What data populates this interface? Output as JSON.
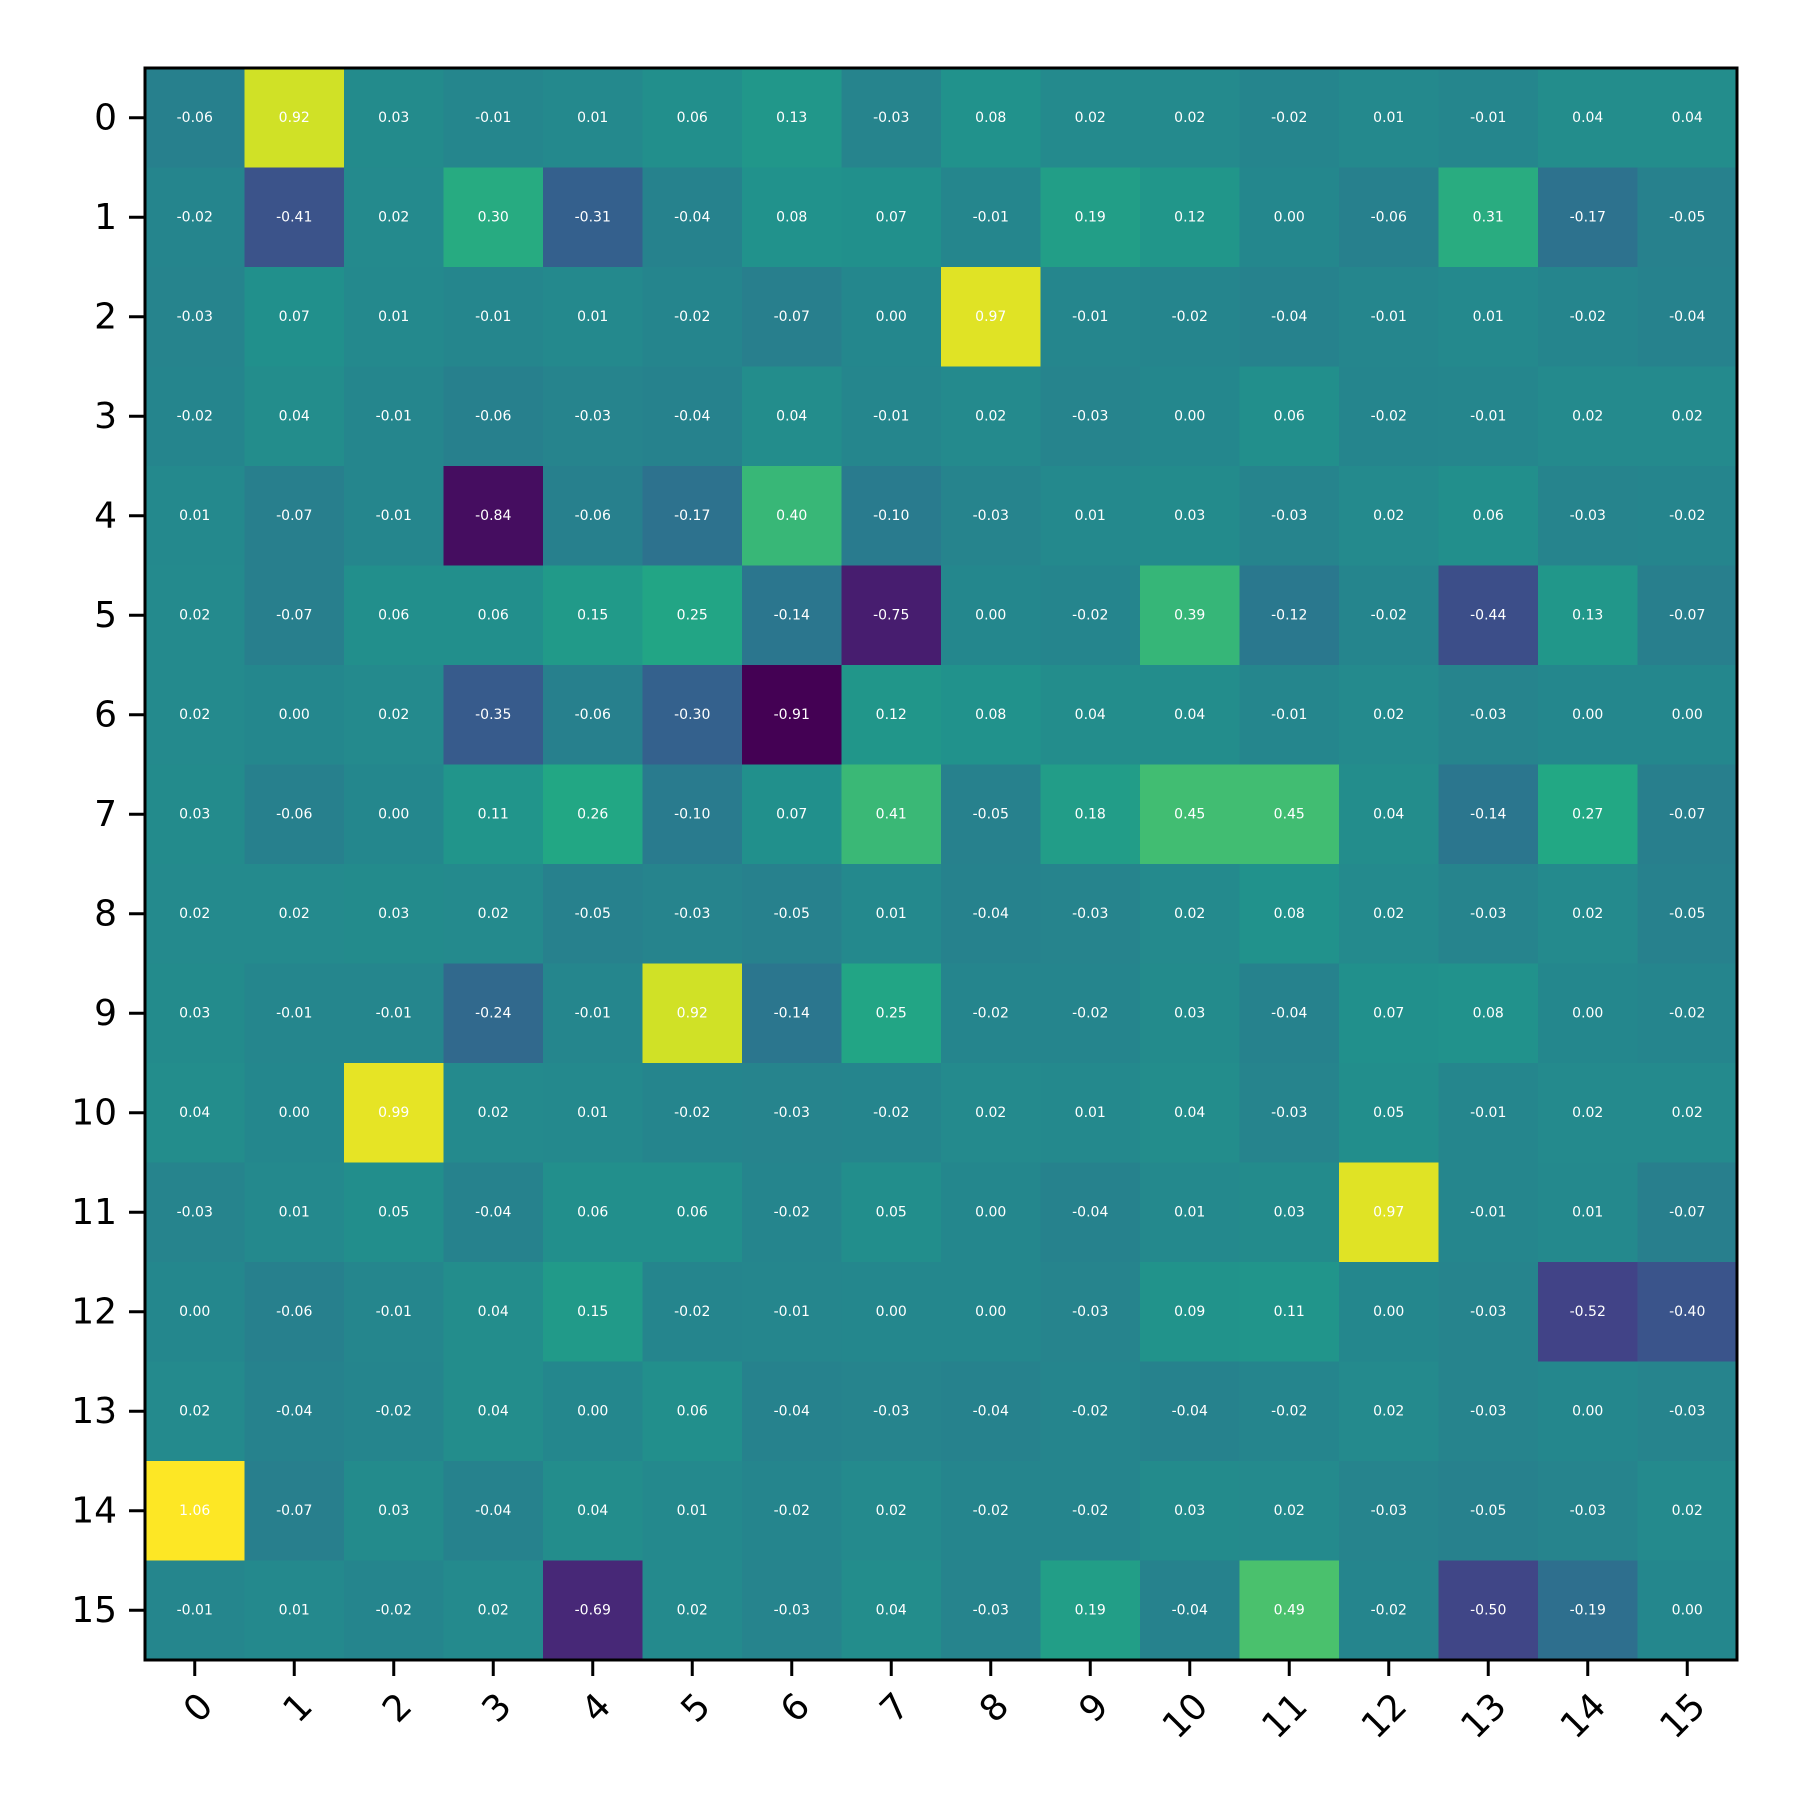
{
  "chart_data": {
    "type": "heatmap",
    "title": "",
    "xlabel": "",
    "ylabel": "",
    "x_categories": [
      "0",
      "1",
      "2",
      "3",
      "4",
      "5",
      "6",
      "7",
      "8",
      "9",
      "10",
      "11",
      "12",
      "13",
      "14",
      "15"
    ],
    "y_categories": [
      "0",
      "1",
      "2",
      "3",
      "4",
      "5",
      "6",
      "7",
      "8",
      "9",
      "10",
      "11",
      "12",
      "13",
      "14",
      "15"
    ],
    "colormap": "viridis",
    "vmin": -0.91,
    "vmax": 1.06,
    "grid": false,
    "values": [
      [
        -0.06,
        0.92,
        0.03,
        -0.01,
        0.01,
        0.06,
        0.13,
        -0.03,
        0.08,
        0.02,
        0.02,
        -0.02,
        0.01,
        -0.01,
        0.04,
        0.04
      ],
      [
        -0.02,
        -0.41,
        0.02,
        0.3,
        -0.31,
        -0.04,
        0.08,
        0.07,
        -0.01,
        0.19,
        0.12,
        -0.0,
        -0.06,
        0.31,
        -0.17,
        -0.05
      ],
      [
        -0.03,
        0.07,
        0.01,
        -0.01,
        0.01,
        -0.02,
        -0.07,
        -0.0,
        0.97,
        -0.01,
        -0.02,
        -0.04,
        -0.01,
        0.01,
        -0.02,
        -0.04
      ],
      [
        -0.02,
        0.04,
        -0.01,
        -0.06,
        -0.03,
        -0.04,
        0.04,
        -0.01,
        0.02,
        -0.03,
        0.0,
        0.06,
        -0.02,
        -0.01,
        0.02,
        0.02
      ],
      [
        0.01,
        -0.07,
        -0.01,
        -0.84,
        -0.06,
        -0.17,
        0.4,
        -0.1,
        -0.03,
        0.01,
        0.03,
        -0.03,
        0.02,
        0.06,
        -0.03,
        -0.02
      ],
      [
        0.02,
        -0.07,
        0.06,
        0.06,
        0.15,
        0.25,
        -0.14,
        -0.75,
        0.0,
        -0.02,
        0.39,
        -0.12,
        -0.02,
        -0.44,
        0.13,
        -0.07
      ],
      [
        0.02,
        0.0,
        0.02,
        -0.35,
        -0.06,
        -0.3,
        -0.91,
        0.12,
        0.08,
        0.04,
        0.04,
        -0.01,
        0.02,
        -0.03,
        -0.0,
        -0.0
      ],
      [
        0.03,
        -0.06,
        0.0,
        0.11,
        0.26,
        -0.1,
        0.07,
        0.41,
        -0.05,
        0.18,
        0.45,
        0.45,
        0.04,
        -0.14,
        0.27,
        -0.07
      ],
      [
        0.02,
        0.02,
        0.03,
        0.02,
        -0.05,
        -0.03,
        -0.05,
        0.01,
        -0.04,
        -0.03,
        0.02,
        0.08,
        0.02,
        -0.03,
        0.02,
        -0.05
      ],
      [
        0.03,
        -0.01,
        -0.01,
        -0.24,
        -0.01,
        0.92,
        -0.14,
        0.25,
        -0.02,
        -0.02,
        0.03,
        -0.04,
        0.07,
        0.08,
        -0.0,
        -0.02
      ],
      [
        0.04,
        0.0,
        0.99,
        0.02,
        0.01,
        -0.02,
        -0.03,
        -0.02,
        0.02,
        0.01,
        0.04,
        -0.03,
        0.05,
        -0.01,
        0.02,
        0.02
      ],
      [
        -0.03,
        0.01,
        0.05,
        -0.04,
        0.06,
        0.06,
        -0.02,
        0.05,
        -0.0,
        -0.04,
        0.01,
        0.03,
        0.97,
        -0.01,
        0.01,
        -0.07
      ],
      [
        0.0,
        -0.06,
        -0.01,
        0.04,
        0.15,
        -0.02,
        -0.01,
        -0.0,
        0.0,
        -0.03,
        0.09,
        0.11,
        -0.0,
        -0.03,
        -0.52,
        -0.4
      ],
      [
        0.02,
        -0.04,
        -0.02,
        0.04,
        -0.0,
        0.06,
        -0.04,
        -0.03,
        -0.04,
        -0.02,
        -0.04,
        -0.02,
        0.02,
        -0.03,
        0.0,
        -0.03
      ],
      [
        1.06,
        -0.07,
        0.03,
        -0.04,
        0.04,
        0.01,
        -0.02,
        0.02,
        -0.02,
        -0.02,
        0.03,
        0.02,
        -0.03,
        -0.05,
        -0.03,
        0.02
      ],
      [
        -0.01,
        0.01,
        -0.02,
        0.02,
        -0.69,
        0.02,
        -0.03,
        0.04,
        -0.03,
        0.19,
        -0.04,
        0.49,
        -0.02,
        -0.5,
        -0.19,
        0.0
      ]
    ]
  }
}
